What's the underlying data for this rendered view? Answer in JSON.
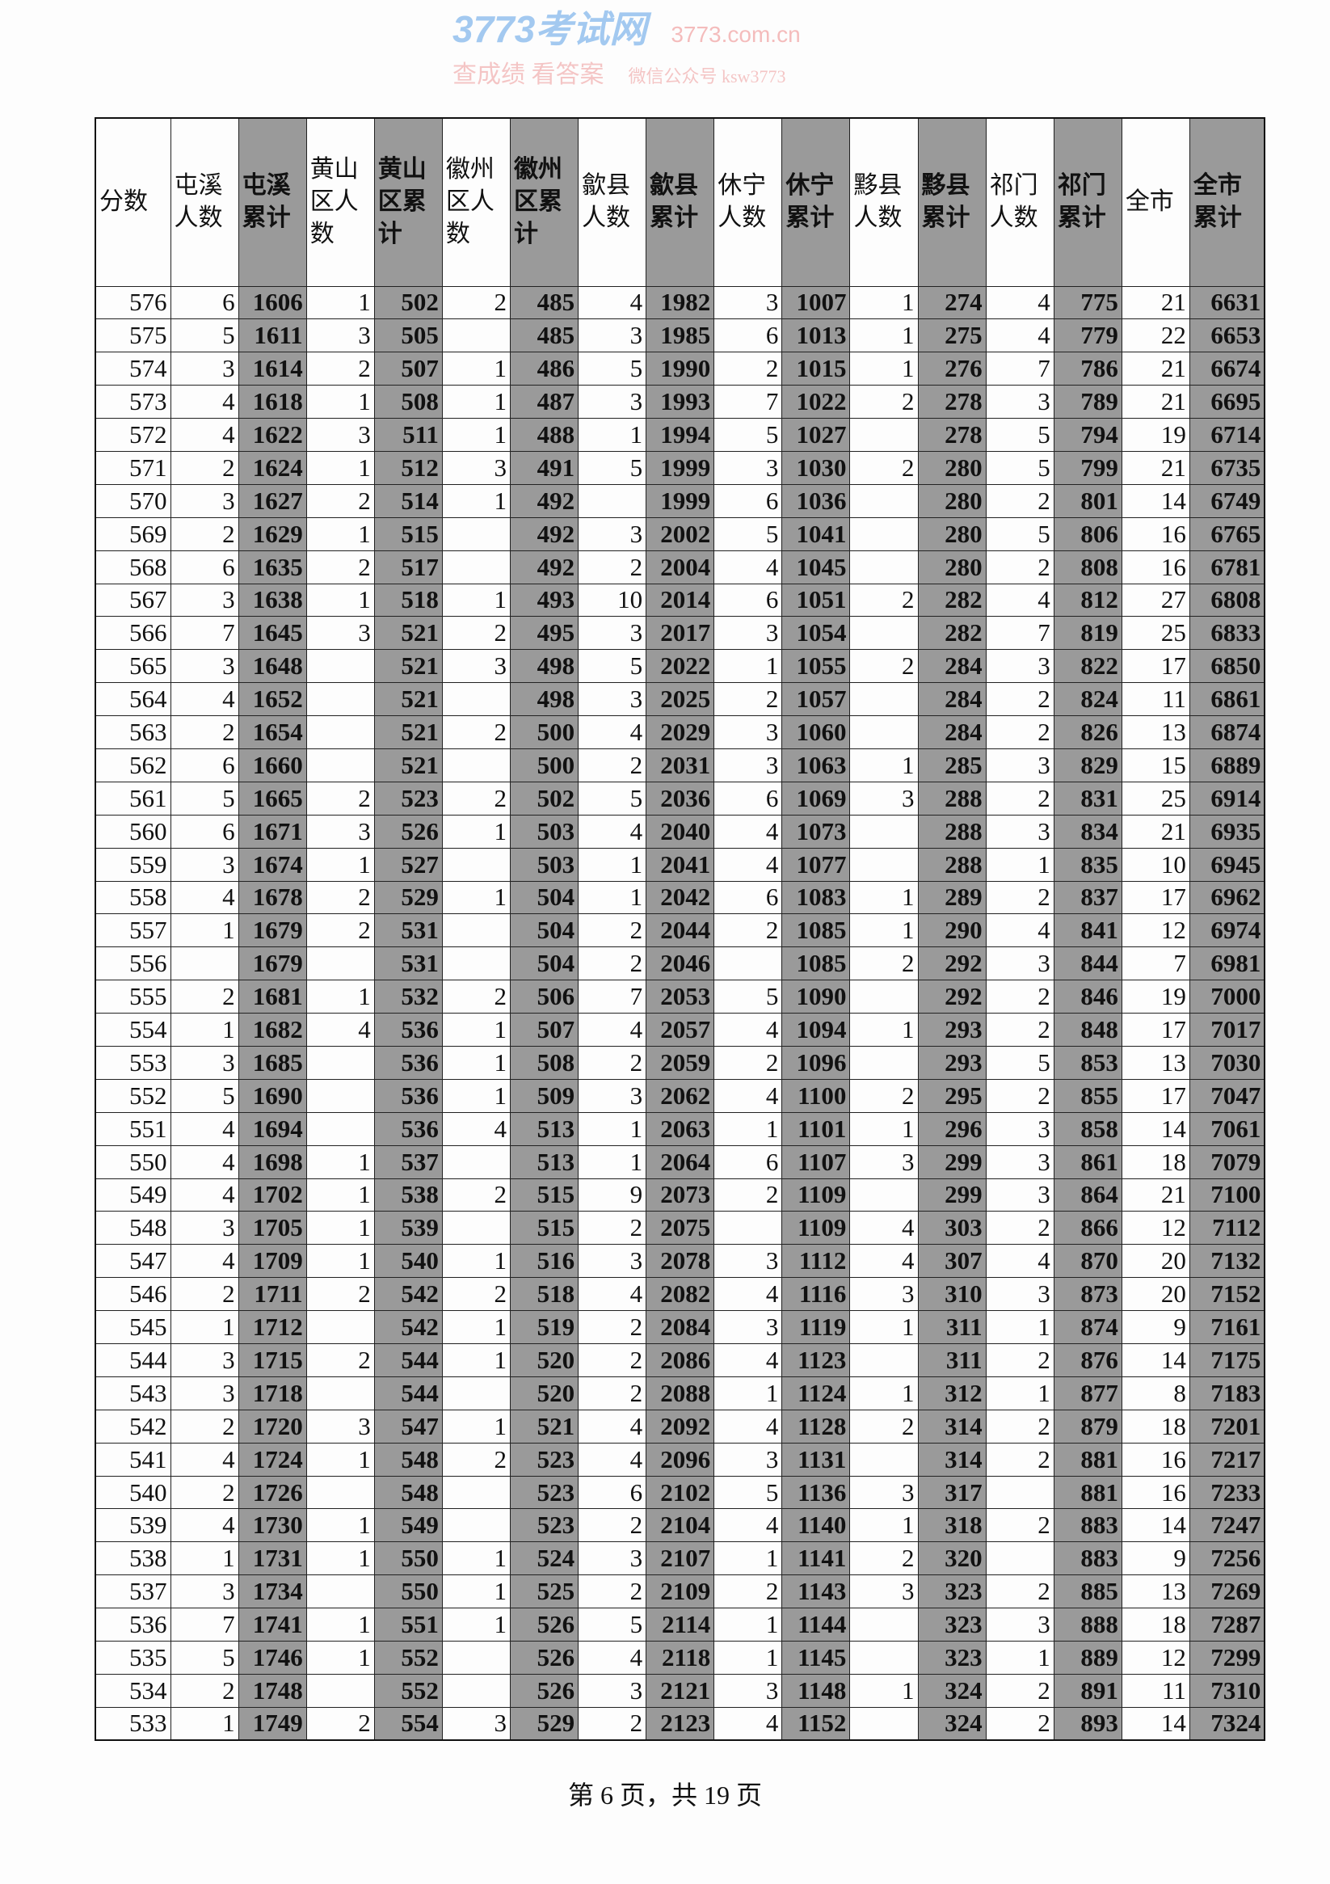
{
  "table": {
    "headers": [
      "分数",
      "屯溪人数",
      "屯溪累计",
      "黄山区人数",
      "黄山区累计",
      "徽州区人数",
      "徽州区累计",
      "歙县人数",
      "歙县累计",
      "休宁人数",
      "休宁累计",
      "黟县人数",
      "黟县累计",
      "祁门人数",
      "祁门累计",
      "全市",
      "全市累计"
    ],
    "cumulative_columns": [
      2,
      4,
      6,
      8,
      10,
      12,
      14,
      16
    ],
    "cumulative_fill": "#9a9a9a",
    "rows": [
      [
        "576",
        "6",
        "1606",
        "1",
        "502",
        "2",
        "485",
        "4",
        "1982",
        "3",
        "1007",
        "1",
        "274",
        "4",
        "775",
        "21",
        "6631"
      ],
      [
        "575",
        "5",
        "1611",
        "3",
        "505",
        "",
        "485",
        "3",
        "1985",
        "6",
        "1013",
        "1",
        "275",
        "4",
        "779",
        "22",
        "6653"
      ],
      [
        "574",
        "3",
        "1614",
        "2",
        "507",
        "1",
        "486",
        "5",
        "1990",
        "2",
        "1015",
        "1",
        "276",
        "7",
        "786",
        "21",
        "6674"
      ],
      [
        "573",
        "4",
        "1618",
        "1",
        "508",
        "1",
        "487",
        "3",
        "1993",
        "7",
        "1022",
        "2",
        "278",
        "3",
        "789",
        "21",
        "6695"
      ],
      [
        "572",
        "4",
        "1622",
        "3",
        "511",
        "1",
        "488",
        "1",
        "1994",
        "5",
        "1027",
        "",
        "278",
        "5",
        "794",
        "19",
        "6714"
      ],
      [
        "571",
        "2",
        "1624",
        "1",
        "512",
        "3",
        "491",
        "5",
        "1999",
        "3",
        "1030",
        "2",
        "280",
        "5",
        "799",
        "21",
        "6735"
      ],
      [
        "570",
        "3",
        "1627",
        "2",
        "514",
        "1",
        "492",
        "",
        "1999",
        "6",
        "1036",
        "",
        "280",
        "2",
        "801",
        "14",
        "6749"
      ],
      [
        "569",
        "2",
        "1629",
        "1",
        "515",
        "",
        "492",
        "3",
        "2002",
        "5",
        "1041",
        "",
        "280",
        "5",
        "806",
        "16",
        "6765"
      ],
      [
        "568",
        "6",
        "1635",
        "2",
        "517",
        "",
        "492",
        "2",
        "2004",
        "4",
        "1045",
        "",
        "280",
        "2",
        "808",
        "16",
        "6781"
      ],
      [
        "567",
        "3",
        "1638",
        "1",
        "518",
        "1",
        "493",
        "10",
        "2014",
        "6",
        "1051",
        "2",
        "282",
        "4",
        "812",
        "27",
        "6808"
      ],
      [
        "566",
        "7",
        "1645",
        "3",
        "521",
        "2",
        "495",
        "3",
        "2017",
        "3",
        "1054",
        "",
        "282",
        "7",
        "819",
        "25",
        "6833"
      ],
      [
        "565",
        "3",
        "1648",
        "",
        "521",
        "3",
        "498",
        "5",
        "2022",
        "1",
        "1055",
        "2",
        "284",
        "3",
        "822",
        "17",
        "6850"
      ],
      [
        "564",
        "4",
        "1652",
        "",
        "521",
        "",
        "498",
        "3",
        "2025",
        "2",
        "1057",
        "",
        "284",
        "2",
        "824",
        "11",
        "6861"
      ],
      [
        "563",
        "2",
        "1654",
        "",
        "521",
        "2",
        "500",
        "4",
        "2029",
        "3",
        "1060",
        "",
        "284",
        "2",
        "826",
        "13",
        "6874"
      ],
      [
        "562",
        "6",
        "1660",
        "",
        "521",
        "",
        "500",
        "2",
        "2031",
        "3",
        "1063",
        "1",
        "285",
        "3",
        "829",
        "15",
        "6889"
      ],
      [
        "561",
        "5",
        "1665",
        "2",
        "523",
        "2",
        "502",
        "5",
        "2036",
        "6",
        "1069",
        "3",
        "288",
        "2",
        "831",
        "25",
        "6914"
      ],
      [
        "560",
        "6",
        "1671",
        "3",
        "526",
        "1",
        "503",
        "4",
        "2040",
        "4",
        "1073",
        "",
        "288",
        "3",
        "834",
        "21",
        "6935"
      ],
      [
        "559",
        "3",
        "1674",
        "1",
        "527",
        "",
        "503",
        "1",
        "2041",
        "4",
        "1077",
        "",
        "288",
        "1",
        "835",
        "10",
        "6945"
      ],
      [
        "558",
        "4",
        "1678",
        "2",
        "529",
        "1",
        "504",
        "1",
        "2042",
        "6",
        "1083",
        "1",
        "289",
        "2",
        "837",
        "17",
        "6962"
      ],
      [
        "557",
        "1",
        "1679",
        "2",
        "531",
        "",
        "504",
        "2",
        "2044",
        "2",
        "1085",
        "1",
        "290",
        "4",
        "841",
        "12",
        "6974"
      ],
      [
        "556",
        "",
        "1679",
        "",
        "531",
        "",
        "504",
        "2",
        "2046",
        "",
        "1085",
        "2",
        "292",
        "3",
        "844",
        "7",
        "6981"
      ],
      [
        "555",
        "2",
        "1681",
        "1",
        "532",
        "2",
        "506",
        "7",
        "2053",
        "5",
        "1090",
        "",
        "292",
        "2",
        "846",
        "19",
        "7000"
      ],
      [
        "554",
        "1",
        "1682",
        "4",
        "536",
        "1",
        "507",
        "4",
        "2057",
        "4",
        "1094",
        "1",
        "293",
        "2",
        "848",
        "17",
        "7017"
      ],
      [
        "553",
        "3",
        "1685",
        "",
        "536",
        "1",
        "508",
        "2",
        "2059",
        "2",
        "1096",
        "",
        "293",
        "5",
        "853",
        "13",
        "7030"
      ],
      [
        "552",
        "5",
        "1690",
        "",
        "536",
        "1",
        "509",
        "3",
        "2062",
        "4",
        "1100",
        "2",
        "295",
        "2",
        "855",
        "17",
        "7047"
      ],
      [
        "551",
        "4",
        "1694",
        "",
        "536",
        "4",
        "513",
        "1",
        "2063",
        "1",
        "1101",
        "1",
        "296",
        "3",
        "858",
        "14",
        "7061"
      ],
      [
        "550",
        "4",
        "1698",
        "1",
        "537",
        "",
        "513",
        "1",
        "2064",
        "6",
        "1107",
        "3",
        "299",
        "3",
        "861",
        "18",
        "7079"
      ],
      [
        "549",
        "4",
        "1702",
        "1",
        "538",
        "2",
        "515",
        "9",
        "2073",
        "2",
        "1109",
        "",
        "299",
        "3",
        "864",
        "21",
        "7100"
      ],
      [
        "548",
        "3",
        "1705",
        "1",
        "539",
        "",
        "515",
        "2",
        "2075",
        "",
        "1109",
        "4",
        "303",
        "2",
        "866",
        "12",
        "7112"
      ],
      [
        "547",
        "4",
        "1709",
        "1",
        "540",
        "1",
        "516",
        "3",
        "2078",
        "3",
        "1112",
        "4",
        "307",
        "4",
        "870",
        "20",
        "7132"
      ],
      [
        "546",
        "2",
        "1711",
        "2",
        "542",
        "2",
        "518",
        "4",
        "2082",
        "4",
        "1116",
        "3",
        "310",
        "3",
        "873",
        "20",
        "7152"
      ],
      [
        "545",
        "1",
        "1712",
        "",
        "542",
        "1",
        "519",
        "2",
        "2084",
        "3",
        "1119",
        "1",
        "311",
        "1",
        "874",
        "9",
        "7161"
      ],
      [
        "544",
        "3",
        "1715",
        "2",
        "544",
        "1",
        "520",
        "2",
        "2086",
        "4",
        "1123",
        "",
        "311",
        "2",
        "876",
        "14",
        "7175"
      ],
      [
        "543",
        "3",
        "1718",
        "",
        "544",
        "",
        "520",
        "2",
        "2088",
        "1",
        "1124",
        "1",
        "312",
        "1",
        "877",
        "8",
        "7183"
      ],
      [
        "542",
        "2",
        "1720",
        "3",
        "547",
        "1",
        "521",
        "4",
        "2092",
        "4",
        "1128",
        "2",
        "314",
        "2",
        "879",
        "18",
        "7201"
      ],
      [
        "541",
        "4",
        "1724",
        "1",
        "548",
        "2",
        "523",
        "4",
        "2096",
        "3",
        "1131",
        "",
        "314",
        "2",
        "881",
        "16",
        "7217"
      ],
      [
        "540",
        "2",
        "1726",
        "",
        "548",
        "",
        "523",
        "6",
        "2102",
        "5",
        "1136",
        "3",
        "317",
        "",
        "881",
        "16",
        "7233"
      ],
      [
        "539",
        "4",
        "1730",
        "1",
        "549",
        "",
        "523",
        "2",
        "2104",
        "4",
        "1140",
        "1",
        "318",
        "2",
        "883",
        "14",
        "7247"
      ],
      [
        "538",
        "1",
        "1731",
        "1",
        "550",
        "1",
        "524",
        "3",
        "2107",
        "1",
        "1141",
        "2",
        "320",
        "",
        "883",
        "9",
        "7256"
      ],
      [
        "537",
        "3",
        "1734",
        "",
        "550",
        "1",
        "525",
        "2",
        "2109",
        "2",
        "1143",
        "3",
        "323",
        "2",
        "885",
        "13",
        "7269"
      ],
      [
        "536",
        "7",
        "1741",
        "1",
        "551",
        "1",
        "526",
        "5",
        "2114",
        "1",
        "1144",
        "",
        "323",
        "3",
        "888",
        "18",
        "7287"
      ],
      [
        "535",
        "5",
        "1746",
        "1",
        "552",
        "",
        "526",
        "4",
        "2118",
        "1",
        "1145",
        "",
        "323",
        "1",
        "889",
        "12",
        "7299"
      ],
      [
        "534",
        "2",
        "1748",
        "",
        "552",
        "",
        "526",
        "3",
        "2121",
        "3",
        "1148",
        "1",
        "324",
        "2",
        "891",
        "11",
        "7310"
      ],
      [
        "533",
        "1",
        "1749",
        "2",
        "554",
        "3",
        "529",
        "2",
        "2123",
        "4",
        "1152",
        "",
        "324",
        "2",
        "893",
        "14",
        "7324"
      ]
    ]
  },
  "footer": {
    "page_label": "第 6 页，共 19 页"
  },
  "watermark": {
    "line1": "3773考试网",
    "line2": "3773.com.cn",
    "line3": "查成绩 看答案",
    "line4": "微信公众号 ksw3773"
  }
}
